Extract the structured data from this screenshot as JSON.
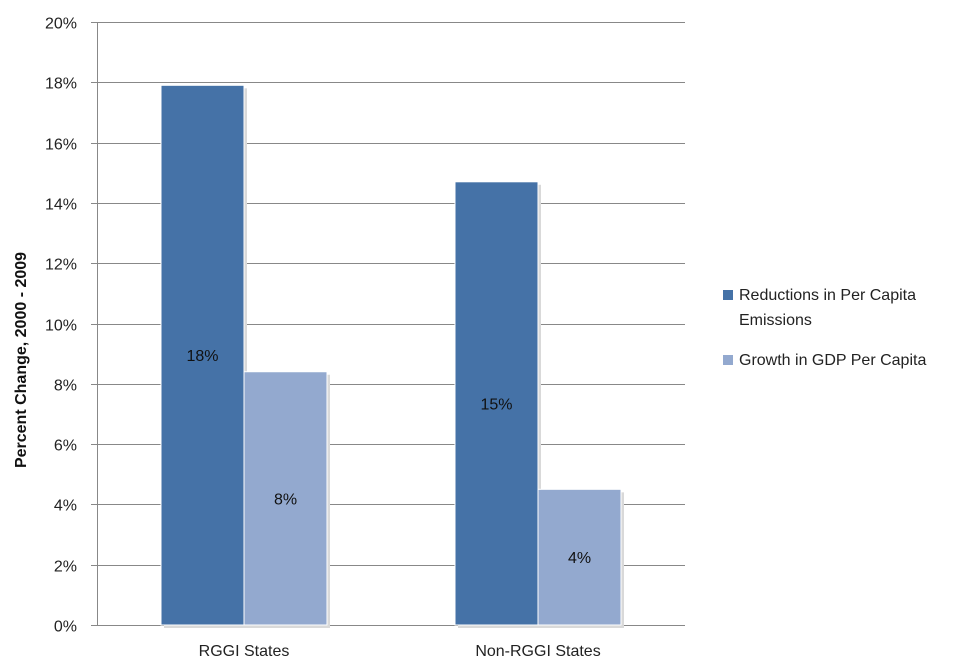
{
  "chart_data": {
    "type": "bar",
    "categories": [
      "RGGI States",
      "Non-RGGI States"
    ],
    "series": [
      {
        "name": "Reductions in Per Capita Emissions",
        "values": [
          17.9,
          14.7
        ],
        "labels": [
          "18%",
          "15%"
        ],
        "color": "#4572A7"
      },
      {
        "name": "Growth in GDP Per Capita",
        "values": [
          8.4,
          4.5
        ],
        "labels": [
          "8%",
          "4%"
        ],
        "color": "#93A9CF"
      }
    ],
    "ylabel": "Percent Change, 2000 - 2009",
    "xlabel": "",
    "ylim": [
      0,
      20
    ],
    "yticks": [
      0,
      2,
      4,
      6,
      8,
      10,
      12,
      14,
      16,
      18,
      20
    ],
    "ytick_labels": [
      "0%",
      "2%",
      "4%",
      "6%",
      "8%",
      "10%",
      "12%",
      "14%",
      "16%",
      "18%",
      "20%"
    ],
    "grid": true,
    "legend_position": "right",
    "legend": [
      {
        "lines": [
          "Reductions in Per Capita",
          "Emissions"
        ],
        "color": "#4572A7"
      },
      {
        "lines": [
          "Growth in GDP Per Capita"
        ],
        "color": "#93A9CF"
      }
    ],
    "colors": {
      "gridline": "#888888",
      "axis": "#888888",
      "shadow": "#d9d9d9"
    }
  }
}
